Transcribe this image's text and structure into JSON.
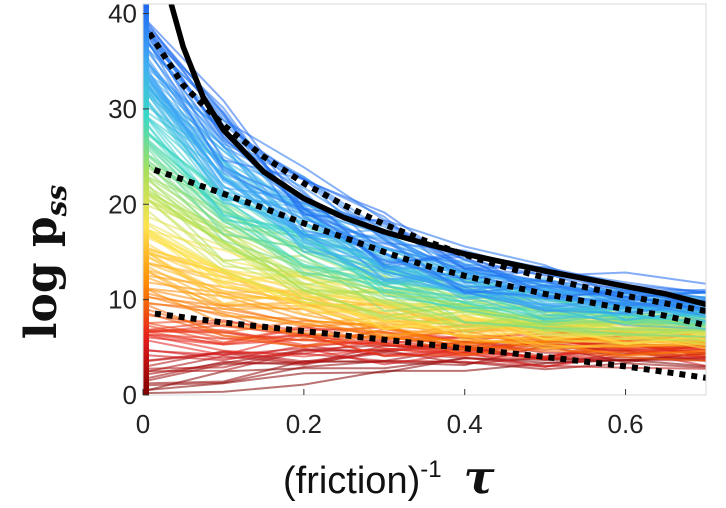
{
  "chart_data": {
    "type": "line",
    "xlabel": "(friction)",
    "xlabel_superscript": "-1",
    "xlabel_symbol": "τ",
    "ylabel": "log p",
    "ylabel_subscript": "ss",
    "xlim": [
      0,
      0.7
    ],
    "ylim": [
      0,
      41
    ],
    "x_ticks": [
      "0",
      "0.2",
      "0.4",
      "0.6"
    ],
    "y_ticks": [
      "0",
      "10",
      "20",
      "30",
      "40"
    ],
    "grid": false,
    "legend": "none",
    "colorbar": {
      "position": "left-inside",
      "colors": [
        "#7f0000",
        "#e31a1c",
        "#ff8c00",
        "#ffe34d",
        "#a8e05a",
        "#38d8c8",
        "#3fa9f5",
        "#1e66f0"
      ]
    },
    "ensemble": {
      "description_count": 180,
      "x": [
        0,
        0.1,
        0.2,
        0.3,
        0.4,
        0.5,
        0.6,
        0.7
      ],
      "start_range": [
        0,
        40
      ],
      "color_scale": "jet, red = low start, blue = high start"
    },
    "series": [
      {
        "style": "solid-black",
        "x": [
          0.035,
          0.05,
          0.075,
          0.1,
          0.15,
          0.2,
          0.25,
          0.3,
          0.35,
          0.4,
          0.45,
          0.5,
          0.55,
          0.6,
          0.65,
          0.7
        ],
        "y": [
          41,
          36.5,
          31.2,
          27.8,
          23.4,
          20.6,
          18.6,
          17.1,
          15.9,
          14.8,
          13.9,
          13.0,
          12.2,
          11.4,
          10.6,
          9.5
        ]
      },
      {
        "style": "dotted-black",
        "x": [
          0,
          0.05,
          0.1,
          0.15,
          0.2,
          0.25,
          0.3,
          0.35,
          0.4,
          0.45,
          0.5,
          0.55,
          0.6,
          0.65,
          0.7
        ],
        "y": [
          39,
          32.5,
          28.3,
          25.0,
          22.2,
          19.9,
          17.9,
          16.2,
          14.7,
          13.4,
          12.3,
          11.3,
          10.4,
          9.6,
          8.8
        ]
      },
      {
        "style": "dotted-black",
        "x": [
          0,
          0.05,
          0.1,
          0.15,
          0.2,
          0.25,
          0.3,
          0.35,
          0.4,
          0.45,
          0.5,
          0.55,
          0.6,
          0.65,
          0.7
        ],
        "y": [
          24,
          22.6,
          21.1,
          19.6,
          18.0,
          16.5,
          15.0,
          13.6,
          12.5,
          11.5,
          10.6,
          9.8,
          9.0,
          8.3,
          7.3
        ]
      },
      {
        "style": "dotted-black",
        "x": [
          0,
          0.1,
          0.2,
          0.3,
          0.4,
          0.5,
          0.6,
          0.7
        ],
        "y": [
          8.7,
          7.6,
          6.7,
          5.8,
          4.9,
          4.0,
          3.0,
          1.8
        ]
      }
    ]
  }
}
